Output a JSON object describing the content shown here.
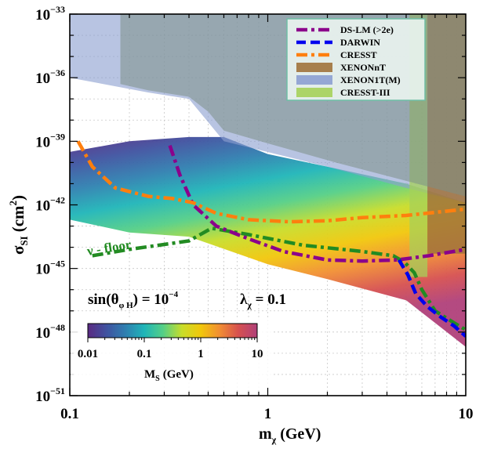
{
  "chart_data": {
    "type": "scatter",
    "xlabel": "m",
    "xlabel_sub": "χ",
    "xlabel_unit": "(GeV)",
    "ylabel": "σ",
    "ylabel_sub": "SI",
    "ylabel_unit": "(cm",
    "ylabel_unit_sup": "2",
    "ylabel_unit_close": ")",
    "x_scale": "log",
    "y_scale": "log",
    "xlim": [
      0.1,
      10
    ],
    "ylim": [
      1e-51,
      1e-33
    ],
    "x_ticks": [
      {
        "value": 0.1,
        "label": "0.1"
      },
      {
        "value": 1,
        "label": "1"
      },
      {
        "value": 10,
        "label": "10"
      }
    ],
    "y_ticks": [
      {
        "exp": -33,
        "base": "10",
        "sup": "−33"
      },
      {
        "exp": -36,
        "base": "10",
        "sup": "−36"
      },
      {
        "exp": -39,
        "base": "10",
        "sup": "−39"
      },
      {
        "exp": -42,
        "base": "10",
        "sup": "−42"
      },
      {
        "exp": -45,
        "base": "10",
        "sup": "−45"
      },
      {
        "exp": -48,
        "base": "10",
        "sup": "−48"
      },
      {
        "exp": -51,
        "base": "10",
        "sup": "−51"
      }
    ],
    "grid": true,
    "legend_position": "top-right",
    "series": [
      {
        "name": "DS-LM (>2e)",
        "style": "dash-dot",
        "color": "#8b008b",
        "points": [
          [
            0.32,
            -39.2
          ],
          [
            0.36,
            -40.6
          ],
          [
            0.42,
            -42.0
          ],
          [
            0.55,
            -43.0
          ],
          [
            0.8,
            -43.6
          ],
          [
            1.2,
            -44.2
          ],
          [
            2.0,
            -44.6
          ],
          [
            3.0,
            -44.65
          ],
          [
            4.5,
            -44.6
          ],
          [
            6.5,
            -44.4
          ],
          [
            10,
            -44.1
          ]
        ]
      },
      {
        "name": "DARWIN",
        "style": "dash",
        "color": "#0000ee",
        "points": [
          [
            4.6,
            -44.6
          ],
          [
            5.1,
            -45.3
          ],
          [
            5.6,
            -46.2
          ],
          [
            6.4,
            -46.8
          ],
          [
            7.5,
            -47.3
          ],
          [
            8.7,
            -47.7
          ],
          [
            10,
            -48.2
          ]
        ]
      },
      {
        "name": "CRESST",
        "style": "dash-dot",
        "color": "#ff7f0e",
        "points": [
          [
            0.11,
            -39.0
          ],
          [
            0.13,
            -40.2
          ],
          [
            0.17,
            -41.2
          ],
          [
            0.25,
            -41.6
          ],
          [
            0.33,
            -41.7
          ],
          [
            0.42,
            -41.9
          ],
          [
            0.55,
            -42.4
          ],
          [
            0.8,
            -42.7
          ],
          [
            1.3,
            -42.8
          ],
          [
            2.0,
            -42.75
          ],
          [
            3.0,
            -42.6
          ],
          [
            5.0,
            -42.5
          ],
          [
            10,
            -42.2
          ]
        ]
      },
      {
        "name": "XENONnT",
        "style": "fill",
        "color": "#a0723c",
        "points": [
          [
            6.4,
            -33
          ],
          [
            10,
            -33
          ],
          [
            10,
            -44.3
          ],
          [
            6.4,
            -44.3
          ]
        ]
      },
      {
        "name": "XENON1T(M)",
        "style": "fill",
        "color": "#8c9fd1",
        "points": [
          [
            0.1,
            -33
          ],
          [
            10,
            -33
          ],
          [
            10,
            -41.9
          ],
          [
            5,
            -41.2
          ],
          [
            2,
            -40.2
          ],
          [
            0.6,
            -39.0
          ],
          [
            0.4,
            -37.0
          ],
          [
            0.25,
            -36.7
          ],
          [
            0.1,
            -36.0
          ]
        ]
      },
      {
        "name": "CRESST-III",
        "style": "fill",
        "color": "#a5d05a",
        "points": [
          [
            5.2,
            -33
          ],
          [
            6.4,
            -33
          ],
          [
            6.4,
            -45.4
          ],
          [
            5.2,
            -45.4
          ]
        ]
      }
    ],
    "floor_curve": {
      "label": "ν - floor",
      "color": "#228b22",
      "style": "dash-dot",
      "points": [
        [
          0.13,
          -44.4
        ],
        [
          0.2,
          -44.1
        ],
        [
          0.4,
          -43.7
        ],
        [
          0.52,
          -43.1
        ],
        [
          0.8,
          -43.4
        ],
        [
          1.5,
          -43.9
        ],
        [
          3.0,
          -44.2
        ],
        [
          4.3,
          -44.4
        ],
        [
          4.9,
          -44.7
        ],
        [
          5.5,
          -45.2
        ],
        [
          6.0,
          -46.0
        ],
        [
          7.0,
          -47.0
        ],
        [
          8.5,
          -47.5
        ],
        [
          10,
          -47.9
        ]
      ]
    },
    "scan_region": {
      "top": [
        [
          0.1,
          -39.5
        ],
        [
          0.2,
          -39.0
        ],
        [
          0.4,
          -38.8
        ],
        [
          0.6,
          -38.8
        ],
        [
          1,
          -39.6
        ],
        [
          2,
          -40.2
        ],
        [
          5,
          -41.0
        ],
        [
          10,
          -41.9
        ]
      ],
      "bottom": [
        [
          0.1,
          -42.7
        ],
        [
          0.2,
          -43.3
        ],
        [
          0.4,
          -43.5
        ],
        [
          1,
          -44.8
        ],
        [
          2,
          -45.5
        ],
        [
          5,
          -46.5
        ],
        [
          10,
          -48.7
        ]
      ]
    },
    "annotation_sin": {
      "text": "sin(θ",
      "sub": "φ H",
      "close": ") = 10",
      "sup": "−4"
    },
    "annotation_lambda": {
      "text": "λ",
      "sub": "χ",
      "rest": " = 0.1"
    },
    "colorbar": {
      "label": "M",
      "label_sub": "S",
      "label_unit": "(GeV)",
      "scale": "log",
      "range": [
        0.01,
        10
      ],
      "ticks": [
        "0.01",
        "0.1",
        "1",
        "10"
      ],
      "colormap": [
        "#5a2a82",
        "#3f52a0",
        "#2f7fb0",
        "#1fb5b8",
        "#55cf86",
        "#c8dd2a",
        "#f1c70b",
        "#f18e33",
        "#d6504f",
        "#b0407a"
      ]
    }
  }
}
